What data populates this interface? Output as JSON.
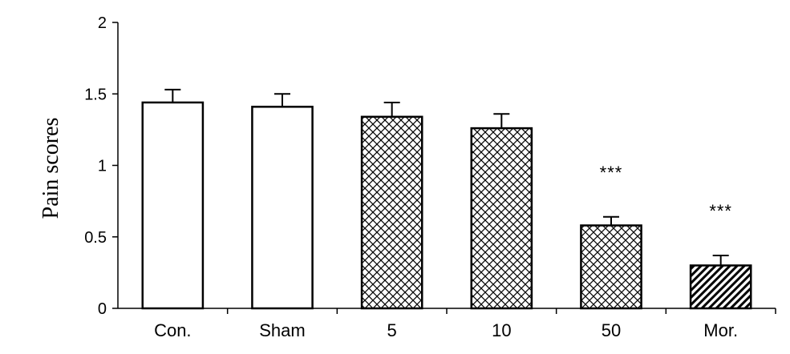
{
  "chart_data": {
    "type": "bar",
    "title": "",
    "xlabel": "",
    "ylabel": "Pain scores",
    "ylim": [
      0,
      2
    ],
    "y_ticks": [
      "0",
      "0.5",
      "1",
      "1.5",
      "2"
    ],
    "grid": false,
    "categories": [
      "Con.",
      "Sham",
      "5",
      "10",
      "50",
      "Mor."
    ],
    "values": [
      1.44,
      1.41,
      1.34,
      1.26,
      0.58,
      0.3
    ],
    "errors": [
      0.09,
      0.09,
      0.1,
      0.1,
      0.06,
      0.07
    ],
    "fills": [
      "white",
      "white",
      "crosshatch",
      "crosshatch",
      "crosshatch",
      "diagonal"
    ],
    "significance": [
      "",
      "",
      "",
      "",
      "***",
      "***"
    ]
  },
  "colors": {
    "bar_stroke": "#000000",
    "hatch": "#000000",
    "axis": "#000000",
    "background": "#ffffff"
  }
}
